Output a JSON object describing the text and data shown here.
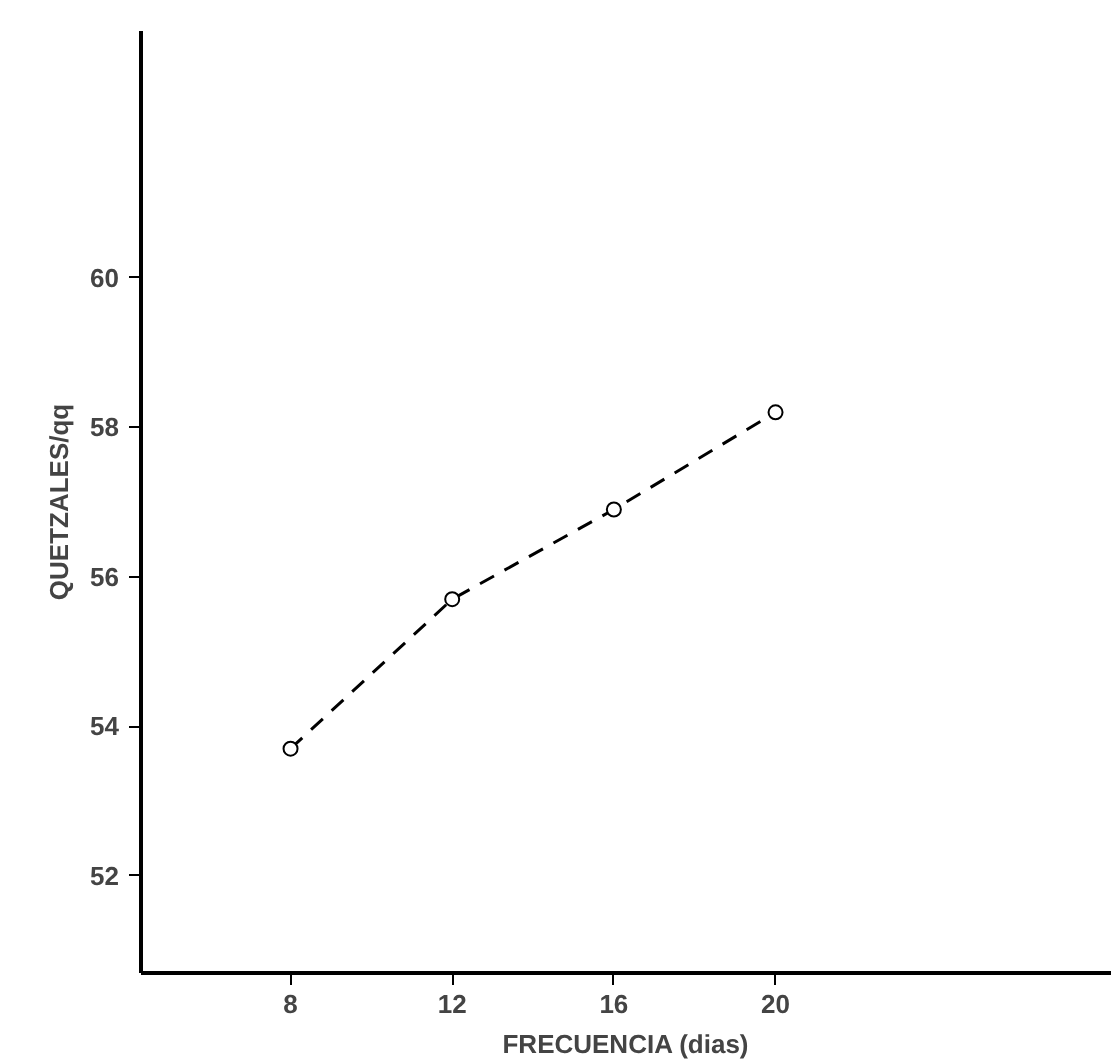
{
  "chart_data": {
    "type": "line",
    "xlabel": "FRECUENCIA (dias)",
    "ylabel": "QUETZALES/qq",
    "x": [
      8,
      12,
      16,
      20
    ],
    "series": [
      {
        "color": "#000000",
        "values": [
          53.7,
          55.7,
          56.9,
          58.2
        ]
      }
    ],
    "xlim": [
      4.3,
      28.3
    ],
    "xticks": [
      8,
      12,
      16,
      20
    ],
    "ylim": [
      50.7,
      63.3
    ],
    "yticks": [
      52,
      54,
      56,
      58,
      60
    ],
    "marker": "circle",
    "line_style": "dashed",
    "grid": false
  }
}
